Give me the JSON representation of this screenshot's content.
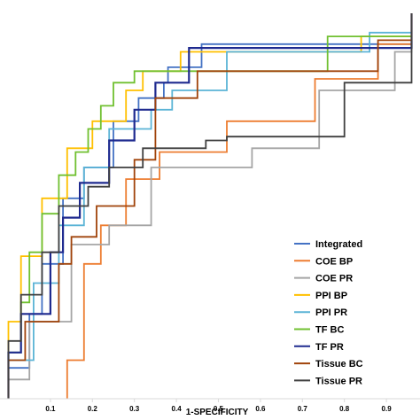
{
  "chart_data": {
    "type": "line",
    "xlabel": "1-SPECIFICITY",
    "ylabel": "",
    "xlim": [
      -0.02,
      0.98
    ],
    "ylim": [
      0.0,
      1.0
    ],
    "x_ticks": [
      "0.1",
      "0.2",
      "0.3",
      "0.4",
      "0.5",
      "0.6",
      "0.7",
      "0.8",
      "0.9"
    ],
    "grid": false,
    "legend_position": "bottom-right",
    "series": [
      {
        "name": "Integrated",
        "color": "#4472C4",
        "x": [
          0.0,
          0.0,
          0.05,
          0.05,
          0.08,
          0.08,
          0.13,
          0.13,
          0.18,
          0.18,
          0.25,
          0.25,
          0.31,
          0.31,
          0.37,
          0.37,
          0.38,
          0.38,
          0.46,
          0.46,
          0.96,
          0.96
        ],
        "y": [
          0.0,
          0.08,
          0.08,
          0.22,
          0.22,
          0.35,
          0.35,
          0.52,
          0.52,
          0.6,
          0.6,
          0.72,
          0.72,
          0.78,
          0.78,
          0.82,
          0.82,
          0.86,
          0.86,
          0.92,
          0.92,
          1.0
        ]
      },
      {
        "name": "COE BP",
        "color": "#ED7D31",
        "x": [
          0.14,
          0.14,
          0.18,
          0.18,
          0.22,
          0.22,
          0.28,
          0.28,
          0.36,
          0.36,
          0.52,
          0.52,
          0.73,
          0.73,
          0.88,
          0.88,
          0.96,
          0.96
        ],
        "y": [
          0.0,
          0.1,
          0.1,
          0.35,
          0.35,
          0.45,
          0.45,
          0.57,
          0.57,
          0.64,
          0.64,
          0.72,
          0.72,
          0.83,
          0.83,
          0.92,
          0.92,
          1.0
        ]
      },
      {
        "name": "COE PR",
        "color": "#A5A5A5",
        "x": [
          0.0,
          0.0,
          0.05,
          0.05,
          0.15,
          0.15,
          0.24,
          0.24,
          0.34,
          0.34,
          0.58,
          0.58,
          0.74,
          0.74,
          0.92,
          0.92,
          0.96,
          0.96
        ],
        "y": [
          0.0,
          0.05,
          0.05,
          0.2,
          0.2,
          0.4,
          0.4,
          0.45,
          0.45,
          0.6,
          0.6,
          0.65,
          0.65,
          0.8,
          0.8,
          0.9,
          0.9,
          1.0
        ]
      },
      {
        "name": "PPI BP",
        "color": "#FFC000",
        "x": [
          0.0,
          0.0,
          0.03,
          0.03,
          0.08,
          0.08,
          0.14,
          0.14,
          0.2,
          0.2,
          0.28,
          0.28,
          0.32,
          0.32,
          0.41,
          0.41,
          0.84,
          0.84,
          0.96,
          0.96
        ],
        "y": [
          0.0,
          0.2,
          0.2,
          0.37,
          0.37,
          0.52,
          0.52,
          0.65,
          0.65,
          0.72,
          0.72,
          0.8,
          0.8,
          0.85,
          0.85,
          0.9,
          0.9,
          0.94,
          0.94,
          1.0
        ]
      },
      {
        "name": "PPI PR",
        "color": "#5BB4D6",
        "x": [
          0.0,
          0.0,
          0.06,
          0.06,
          0.12,
          0.12,
          0.18,
          0.18,
          0.24,
          0.24,
          0.34,
          0.34,
          0.39,
          0.39,
          0.52,
          0.52,
          0.86,
          0.86,
          0.96,
          0.96
        ],
        "y": [
          0.0,
          0.1,
          0.1,
          0.3,
          0.3,
          0.45,
          0.45,
          0.6,
          0.6,
          0.7,
          0.7,
          0.75,
          0.75,
          0.8,
          0.8,
          0.9,
          0.9,
          0.95,
          0.95,
          1.0
        ]
      },
      {
        "name": "TF BC",
        "color": "#70C030",
        "x": [
          0.0,
          0.0,
          0.03,
          0.03,
          0.05,
          0.05,
          0.08,
          0.08,
          0.12,
          0.12,
          0.16,
          0.16,
          0.19,
          0.19,
          0.22,
          0.22,
          0.25,
          0.25,
          0.3,
          0.3,
          0.76,
          0.76,
          0.96,
          0.96
        ],
        "y": [
          0.0,
          0.12,
          0.12,
          0.25,
          0.25,
          0.38,
          0.38,
          0.48,
          0.48,
          0.58,
          0.58,
          0.64,
          0.64,
          0.7,
          0.7,
          0.76,
          0.76,
          0.82,
          0.82,
          0.85,
          0.85,
          0.94,
          0.94,
          1.0
        ]
      },
      {
        "name": "TF PR",
        "color": "#1F2A8F",
        "x": [
          0.0,
          0.0,
          0.03,
          0.03,
          0.1,
          0.1,
          0.13,
          0.13,
          0.17,
          0.17,
          0.24,
          0.24,
          0.3,
          0.3,
          0.35,
          0.35,
          0.43,
          0.43,
          0.96,
          0.96
        ],
        "y": [
          0.0,
          0.12,
          0.12,
          0.22,
          0.22,
          0.38,
          0.38,
          0.47,
          0.47,
          0.56,
          0.56,
          0.67,
          0.67,
          0.75,
          0.75,
          0.82,
          0.82,
          0.91,
          0.91,
          1.0
        ]
      },
      {
        "name": "Tissue BC",
        "color": "#A0430A",
        "x": [
          0.0,
          0.0,
          0.04,
          0.04,
          0.12,
          0.12,
          0.15,
          0.15,
          0.21,
          0.21,
          0.3,
          0.3,
          0.35,
          0.35,
          0.45,
          0.45,
          0.88,
          0.88,
          0.96,
          0.96
        ],
        "y": [
          0.0,
          0.1,
          0.1,
          0.2,
          0.2,
          0.35,
          0.35,
          0.42,
          0.42,
          0.5,
          0.5,
          0.62,
          0.62,
          0.78,
          0.78,
          0.85,
          0.85,
          0.93,
          0.93,
          1.0
        ]
      },
      {
        "name": "Tissue PR",
        "color": "#3F3F3F",
        "x": [
          0.0,
          0.0,
          0.03,
          0.03,
          0.08,
          0.08,
          0.12,
          0.12,
          0.19,
          0.19,
          0.24,
          0.24,
          0.32,
          0.32,
          0.47,
          0.47,
          0.52,
          0.52,
          0.8,
          0.8,
          0.96,
          0.96
        ],
        "y": [
          0.0,
          0.15,
          0.15,
          0.27,
          0.27,
          0.38,
          0.38,
          0.5,
          0.5,
          0.55,
          0.55,
          0.6,
          0.6,
          0.65,
          0.65,
          0.67,
          0.67,
          0.68,
          0.68,
          0.82,
          0.82,
          1.0
        ]
      }
    ]
  }
}
